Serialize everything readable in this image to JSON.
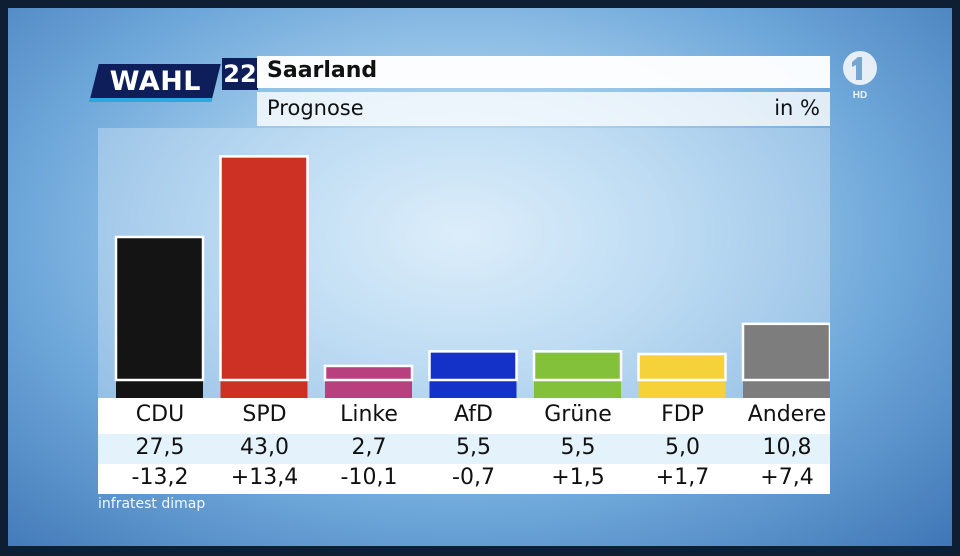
{
  "header": {
    "logo_text": "WAHL",
    "logo_year": "22",
    "title": "Saarland",
    "subtitle": "Prognose",
    "unit": "in %"
  },
  "channel": {
    "hd_label": "HD"
  },
  "source": "infratest dimap",
  "colors": {
    "CDU": "#141414",
    "SPD": "#cc3124",
    "Linke": "#b9407f",
    "AfD": "#1431c8",
    "Grüne": "#84c13a",
    "FDP": "#f5d23a",
    "Andere": "#7d7d7d"
  },
  "chart_data": {
    "type": "bar",
    "title": "Saarland",
    "subtitle": "Prognose",
    "unit": "in %",
    "categories": [
      "CDU",
      "SPD",
      "Linke",
      "AfD",
      "Grüne",
      "FDP",
      "Andere"
    ],
    "values": [
      27.5,
      43.0,
      2.7,
      5.5,
      5.5,
      5.0,
      10.8
    ],
    "value_labels": [
      "27,5",
      "43,0",
      "2,7",
      "5,5",
      "5,5",
      "5,0",
      "10,8"
    ],
    "change_labels": [
      "-13,2",
      "+13,4",
      "-10,1",
      "-0,7",
      "+1,5",
      "+1,7",
      "+7,4"
    ],
    "changes": [
      -13.2,
      13.4,
      -10.1,
      -0.7,
      1.5,
      1.7,
      7.4
    ],
    "ylim": [
      0,
      45
    ],
    "grid": false
  }
}
